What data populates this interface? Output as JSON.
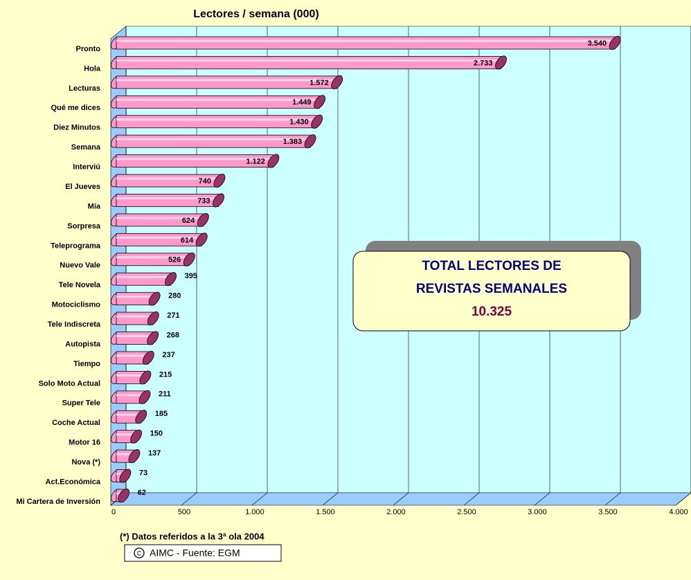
{
  "chart_data": {
    "type": "bar",
    "orientation": "horizontal",
    "title": "Lectores / semana  (000)",
    "categories": [
      "Pronto",
      "Hola",
      "Lecturas",
      "Qué me dices",
      "Diez Minutos",
      "Semana",
      "Interviú",
      "El Jueves",
      "Mía",
      "Sorpresa",
      "Teleprograma",
      "Nuevo Vale",
      "Tele Novela",
      "Motociclismo",
      "Tele Indiscreta",
      "Autopista",
      "Tiempo",
      "Solo Moto Actual",
      "Super Tele",
      "Coche Actual",
      "Motor 16",
      "Nova (*)",
      "Act.Económica",
      "Mi Cartera de Inversión"
    ],
    "values": [
      3540,
      2733,
      1572,
      1449,
      1430,
      1383,
      1122,
      740,
      733,
      624,
      614,
      526,
      395,
      280,
      271,
      268,
      237,
      215,
      211,
      185,
      150,
      137,
      73,
      62
    ],
    "value_labels": [
      "3.540",
      "2.733",
      "1.572",
      "1.449",
      "1.430",
      "1.383",
      "1.122",
      "740",
      "733",
      "624",
      "614",
      "526",
      "395",
      "280",
      "271",
      "268",
      "237",
      "215",
      "211",
      "185",
      "150",
      "137",
      "73",
      "62"
    ],
    "color": "#ff99cc",
    "xlim": [
      0,
      4000
    ],
    "xticks": [
      0,
      500,
      {
        "value": 1000,
        "label": "1.000"
      },
      {
        "value": 1500,
        "label": "1.500"
      },
      {
        "value": 2000,
        "label": "2.000"
      },
      {
        "value": 2500,
        "label": "2.500"
      },
      {
        "value": 3000,
        "label": "3.000"
      },
      {
        "value": 3500,
        "label": "3.500"
      },
      {
        "value": 4000,
        "label": "4.000"
      }
    ],
    "grid": true,
    "annotation": {
      "lines": [
        "TOTAL LECTORES DE",
        "REVISTAS SEMANALES"
      ],
      "total": "10.325"
    },
    "footnote": "(*) Datos referidos a la 3ª ola 2004",
    "source": "AIMC - Fuente: EGM"
  }
}
